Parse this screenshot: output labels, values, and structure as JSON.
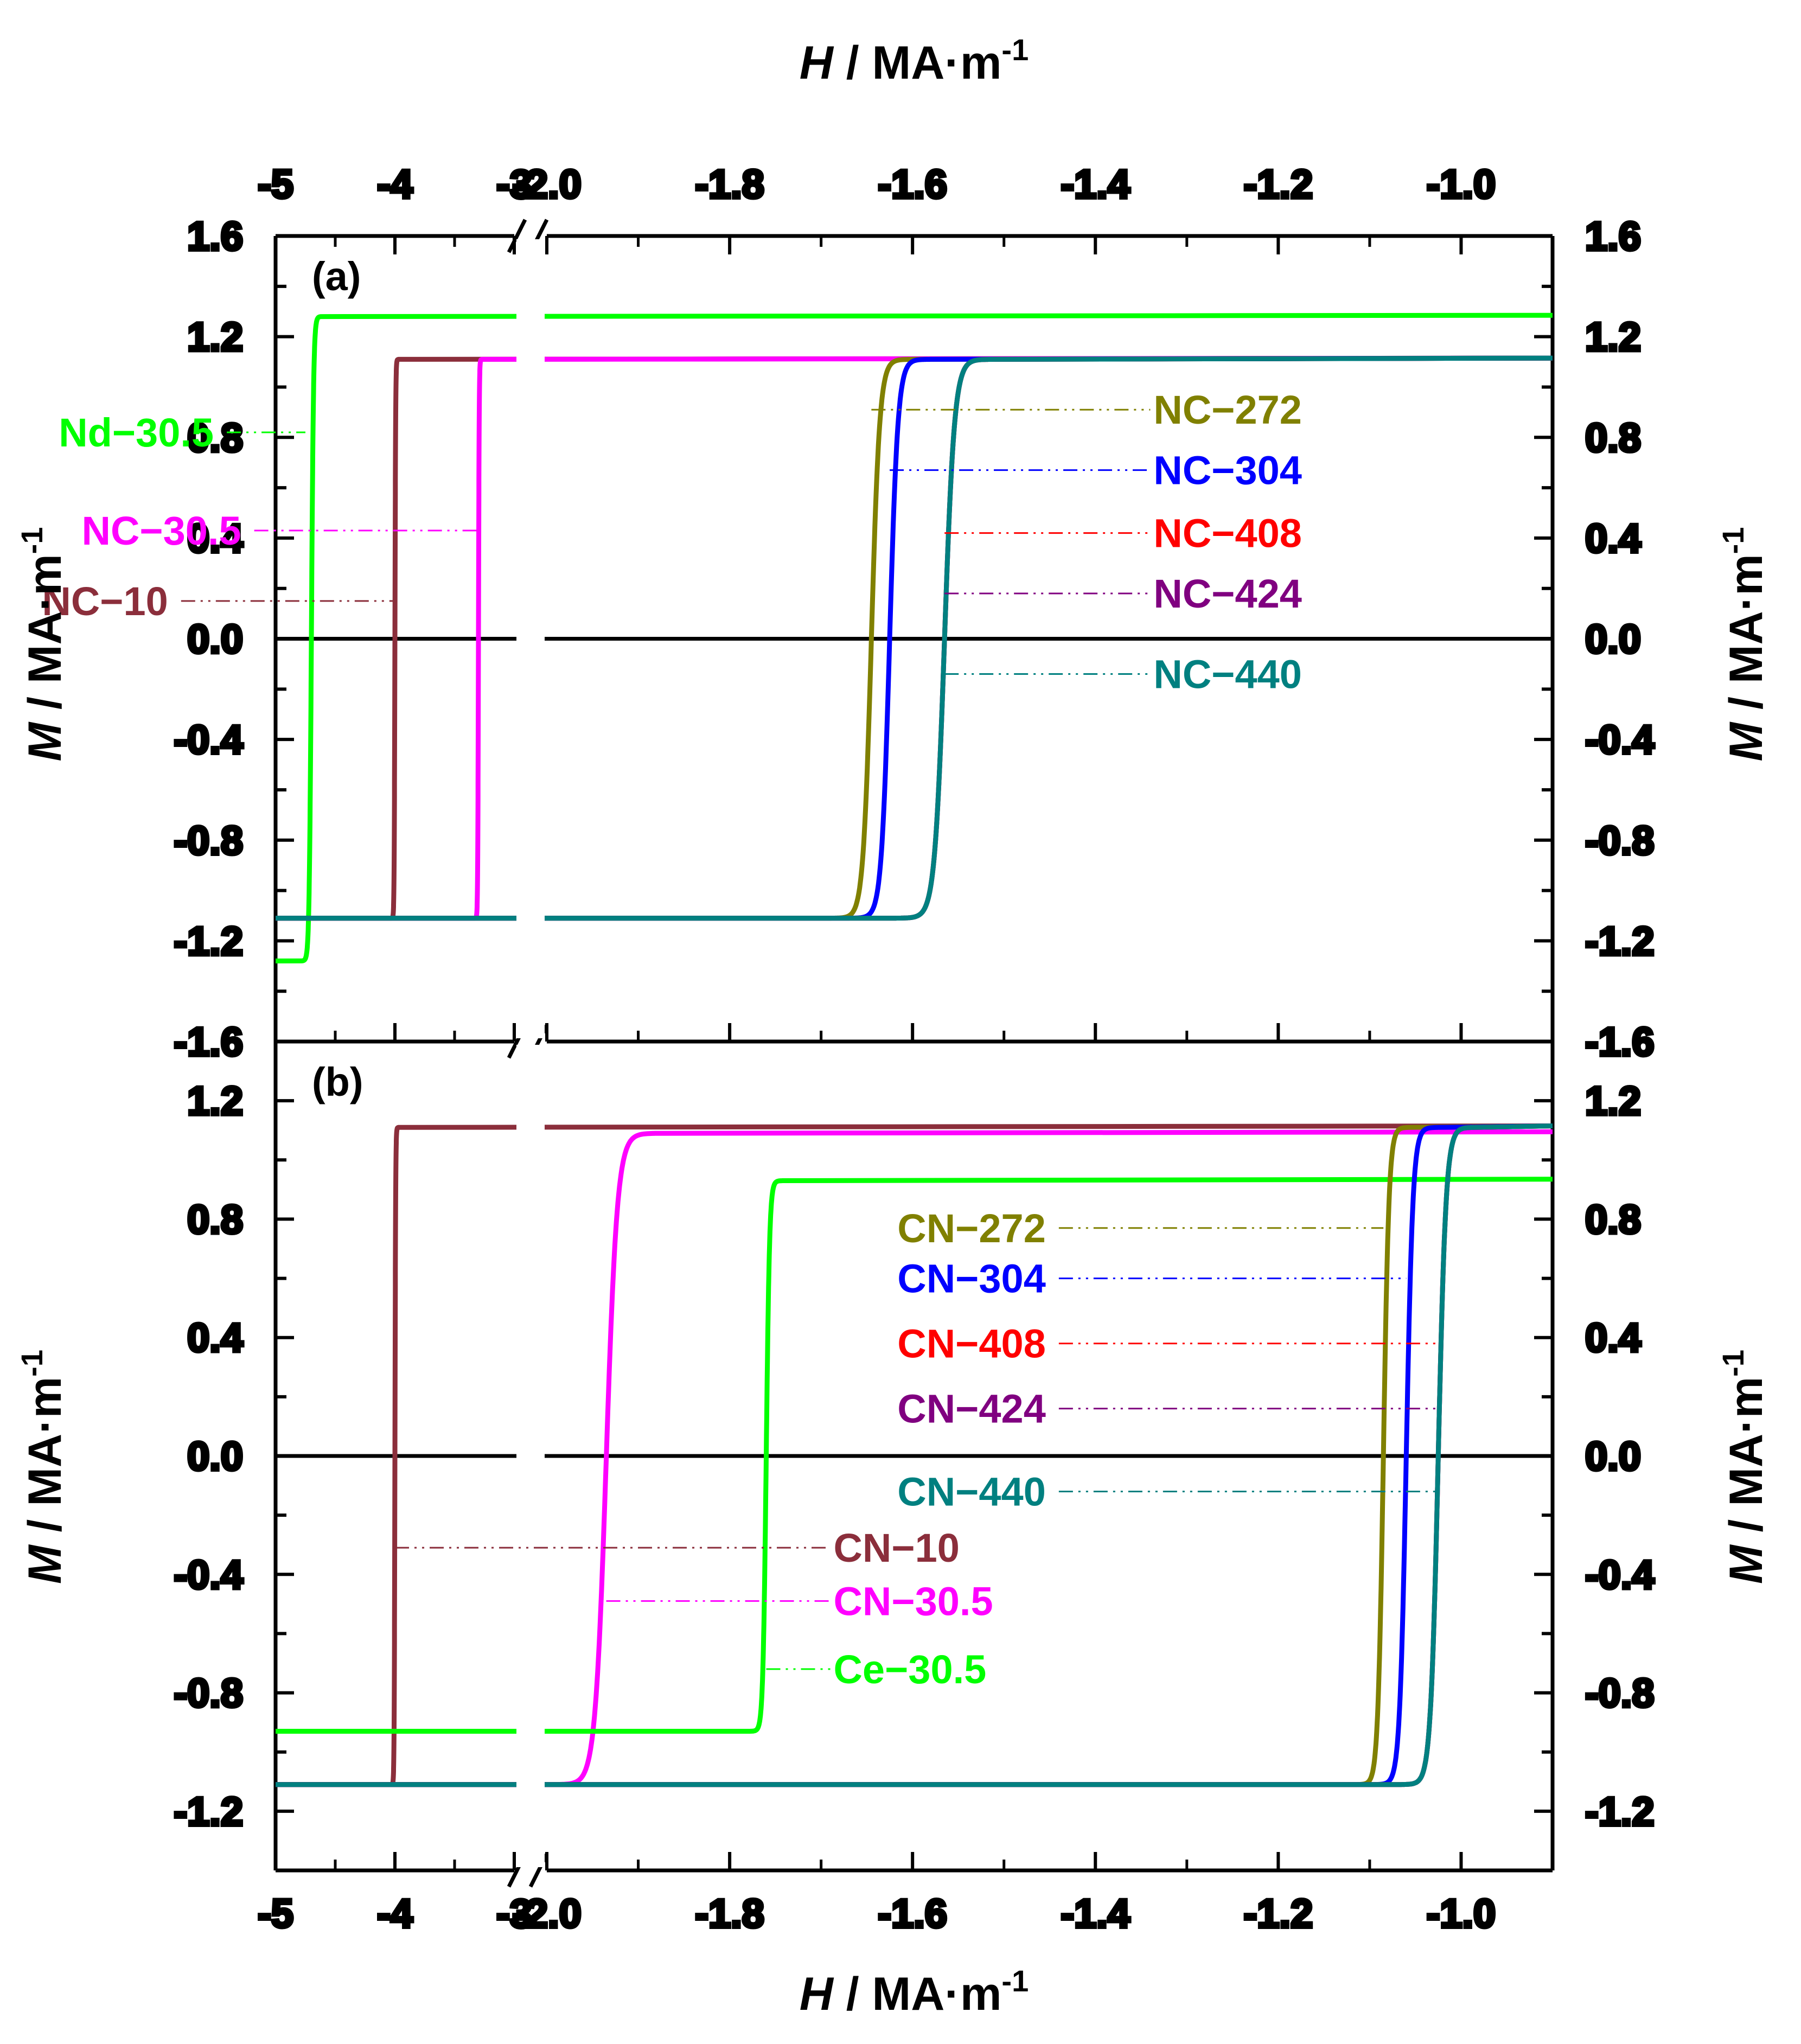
{
  "colors": {
    "olive": "#808000",
    "blue": "#0000ff",
    "red": "#ff0000",
    "purple": "#800080",
    "teal": "#008080",
    "maroon": "#8b2e3b",
    "magenta": "#ff00ff",
    "green": "#00ff00",
    "black": "#000000"
  },
  "chart_data": [
    {
      "panel": "(a)",
      "type": "line",
      "x_axis": {
        "label_italic": "H",
        "label_rest": " / MA·m",
        "label_sup": "-1",
        "segments": [
          {
            "range": [
              -5,
              -3
            ],
            "ticks": [
              -5,
              -4,
              -3
            ],
            "tick_labels": [
              "-5",
              "-4",
              "-3"
            ]
          },
          {
            "range": [
              -2.0,
              -0.9
            ],
            "ticks": [
              -2.0,
              -1.8,
              -1.6,
              -1.4,
              -1.2,
              -1.0
            ],
            "tick_labels": [
              "-2.0",
              "-1.8",
              "-1.6",
              "-1.4",
              "-1.2",
              "-1.0"
            ]
          }
        ],
        "axis_break": "//"
      },
      "y_axis": {
        "label_italic": "M",
        "label_rest": " / MA·m",
        "label_sup": "-1",
        "range": [
          -1.6,
          1.6
        ],
        "ticks": [
          -1.6,
          -1.2,
          -0.8,
          -0.4,
          0.0,
          0.4,
          0.8,
          1.2,
          1.6
        ],
        "tick_labels": [
          "-1.6",
          "-1.2",
          "-0.8",
          "-0.4",
          "0.0",
          "0.4",
          "0.8",
          "1.2",
          "1.6"
        ]
      },
      "series": [
        {
          "name": "Nd−30.5",
          "color": "green",
          "Hc": -4.7,
          "Ms": 1.28,
          "Ms_low": -1.28,
          "width": 0.03
        },
        {
          "name": "NC−10",
          "color": "maroon",
          "Hc": -4.0,
          "Ms": 1.11,
          "Ms_low": -1.11,
          "width": 0.01
        },
        {
          "name": "NC−30.5",
          "color": "magenta",
          "Hc": -3.3,
          "Ms": 1.11,
          "Ms_low": -1.11,
          "width": 0.01
        },
        {
          "name": "NC−272",
          "color": "olive",
          "Hc": -1.645,
          "Ms": 1.11,
          "Ms_low": -1.11,
          "width": 0.015
        },
        {
          "name": "NC−304",
          "color": "blue",
          "Hc": -1.625,
          "Ms": 1.11,
          "Ms_low": -1.11,
          "width": 0.015
        },
        {
          "name": "NC−408",
          "color": "red",
          "Hc": -1.565,
          "Ms": 1.11,
          "Ms_low": -1.11,
          "width": 0.018
        },
        {
          "name": "NC−424",
          "color": "purple",
          "Hc": -1.565,
          "Ms": 1.11,
          "Ms_low": -1.11,
          "width": 0.018
        },
        {
          "name": "NC−440",
          "color": "teal",
          "Hc": -1.565,
          "Ms": 1.11,
          "Ms_low": -1.11,
          "width": 0.018
        }
      ],
      "annotations": [
        {
          "text": "Nd−30.5",
          "color": "green",
          "x": -4.75,
          "y": 0.82,
          "x_end": -2.35
        },
        {
          "text": "NC−30.5",
          "color": "magenta",
          "x": -3.3,
          "y": 0.43,
          "x_end": -2.32
        },
        {
          "text": "NC−10",
          "color": "maroon",
          "x": -4.0,
          "y": 0.15,
          "x_end": -2.4
        },
        {
          "text": "NC−272",
          "color": "olive",
          "x": -1.645,
          "y": 0.91,
          "x_end": -1.34
        },
        {
          "text": "NC−304",
          "color": "blue",
          "x": -1.625,
          "y": 0.67,
          "x_end": -1.34
        },
        {
          "text": "NC−408",
          "color": "red",
          "x": -1.565,
          "y": 0.42,
          "x_end": -1.34
        },
        {
          "text": "NC−424",
          "color": "purple",
          "x": -1.565,
          "y": 0.18,
          "x_end": -1.34
        },
        {
          "text": "NC−440",
          "color": "teal",
          "x": -1.565,
          "y": -0.14,
          "x_end": -1.34
        }
      ]
    },
    {
      "panel": "(b)",
      "type": "line",
      "x_axis": {
        "label_italic": "H",
        "label_rest": " / MA·m",
        "label_sup": "-1",
        "segments": [
          {
            "range": [
              -5,
              -3
            ],
            "ticks": [
              -5,
              -4,
              -3
            ],
            "tick_labels": [
              "-5",
              "-4",
              "-3"
            ]
          },
          {
            "range": [
              -2.0,
              -0.9
            ],
            "ticks": [
              -2.0,
              -1.8,
              -1.6,
              -1.4,
              -1.2,
              -1.0
            ],
            "tick_labels": [
              "-2.0",
              "-1.8",
              "-1.6",
              "-1.4",
              "-1.2",
              "-1.0"
            ]
          }
        ],
        "axis_break": "//"
      },
      "y_axis": {
        "label_italic": "M",
        "label_rest": " / MA·m",
        "label_sup": "-1",
        "range": [
          -1.4,
          1.4
        ],
        "ticks": [
          -1.2,
          -0.8,
          -0.4,
          0.0,
          0.4,
          0.8,
          1.2
        ],
        "tick_labels": [
          "-1.2",
          "-0.8",
          "-0.4",
          "0.0",
          "0.4",
          "0.8",
          "1.2"
        ]
      },
      "series": [
        {
          "name": "CN−10",
          "color": "maroon",
          "Hc": -4.0,
          "Ms": 1.11,
          "Ms_low": -1.11,
          "width": 0.01
        },
        {
          "name": "CN−30.5",
          "color": "magenta",
          "Hc": -1.935,
          "Ms": 1.09,
          "Ms_low": -1.11,
          "width": 0.02
        },
        {
          "name": "Ce−30.5",
          "color": "green",
          "Hc": -1.76,
          "Ms": 0.93,
          "Ms_low": -0.93,
          "width": 0.006
        },
        {
          "name": "CN−272",
          "color": "olive",
          "Hc": -1.085,
          "Ms": 1.11,
          "Ms_low": -1.11,
          "width": 0.01
        },
        {
          "name": "CN−304",
          "color": "blue",
          "Hc": -1.06,
          "Ms": 1.11,
          "Ms_low": -1.11,
          "width": 0.012
        },
        {
          "name": "CN−408",
          "color": "red",
          "Hc": -1.025,
          "Ms": 1.11,
          "Ms_low": -1.11,
          "width": 0.014
        },
        {
          "name": "CN−424",
          "color": "purple",
          "Hc": -1.025,
          "Ms": 1.11,
          "Ms_low": -1.11,
          "width": 0.014
        },
        {
          "name": "CN−440",
          "color": "teal",
          "Hc": -1.025,
          "Ms": 1.11,
          "Ms_low": -1.11,
          "width": 0.014
        }
      ],
      "annotations": [
        {
          "text": "CN−272",
          "color": "olive",
          "x": -1.085,
          "y": 0.77,
          "x_end": -1.44
        },
        {
          "text": "CN−304",
          "color": "blue",
          "x": -1.06,
          "y": 0.6,
          "x_end": -1.44
        },
        {
          "text": "CN−408",
          "color": "red",
          "x": -1.025,
          "y": 0.38,
          "x_end": -1.44
        },
        {
          "text": "CN−424",
          "color": "purple",
          "x": -1.025,
          "y": 0.16,
          "x_end": -1.44
        },
        {
          "text": "CN−440",
          "color": "teal",
          "x": -1.025,
          "y": -0.12,
          "x_end": -1.44
        },
        {
          "text": "CN−10",
          "color": "maroon",
          "x": -4.0,
          "y": -0.31,
          "x_end": -1.69
        },
        {
          "text": "CN−30.5",
          "color": "magenta",
          "x": -1.935,
          "y": -0.49,
          "x_end": -1.69
        },
        {
          "text": "Ce−30.5",
          "color": "green",
          "x": -1.76,
          "y": -0.72,
          "x_end": -1.69
        }
      ]
    }
  ]
}
